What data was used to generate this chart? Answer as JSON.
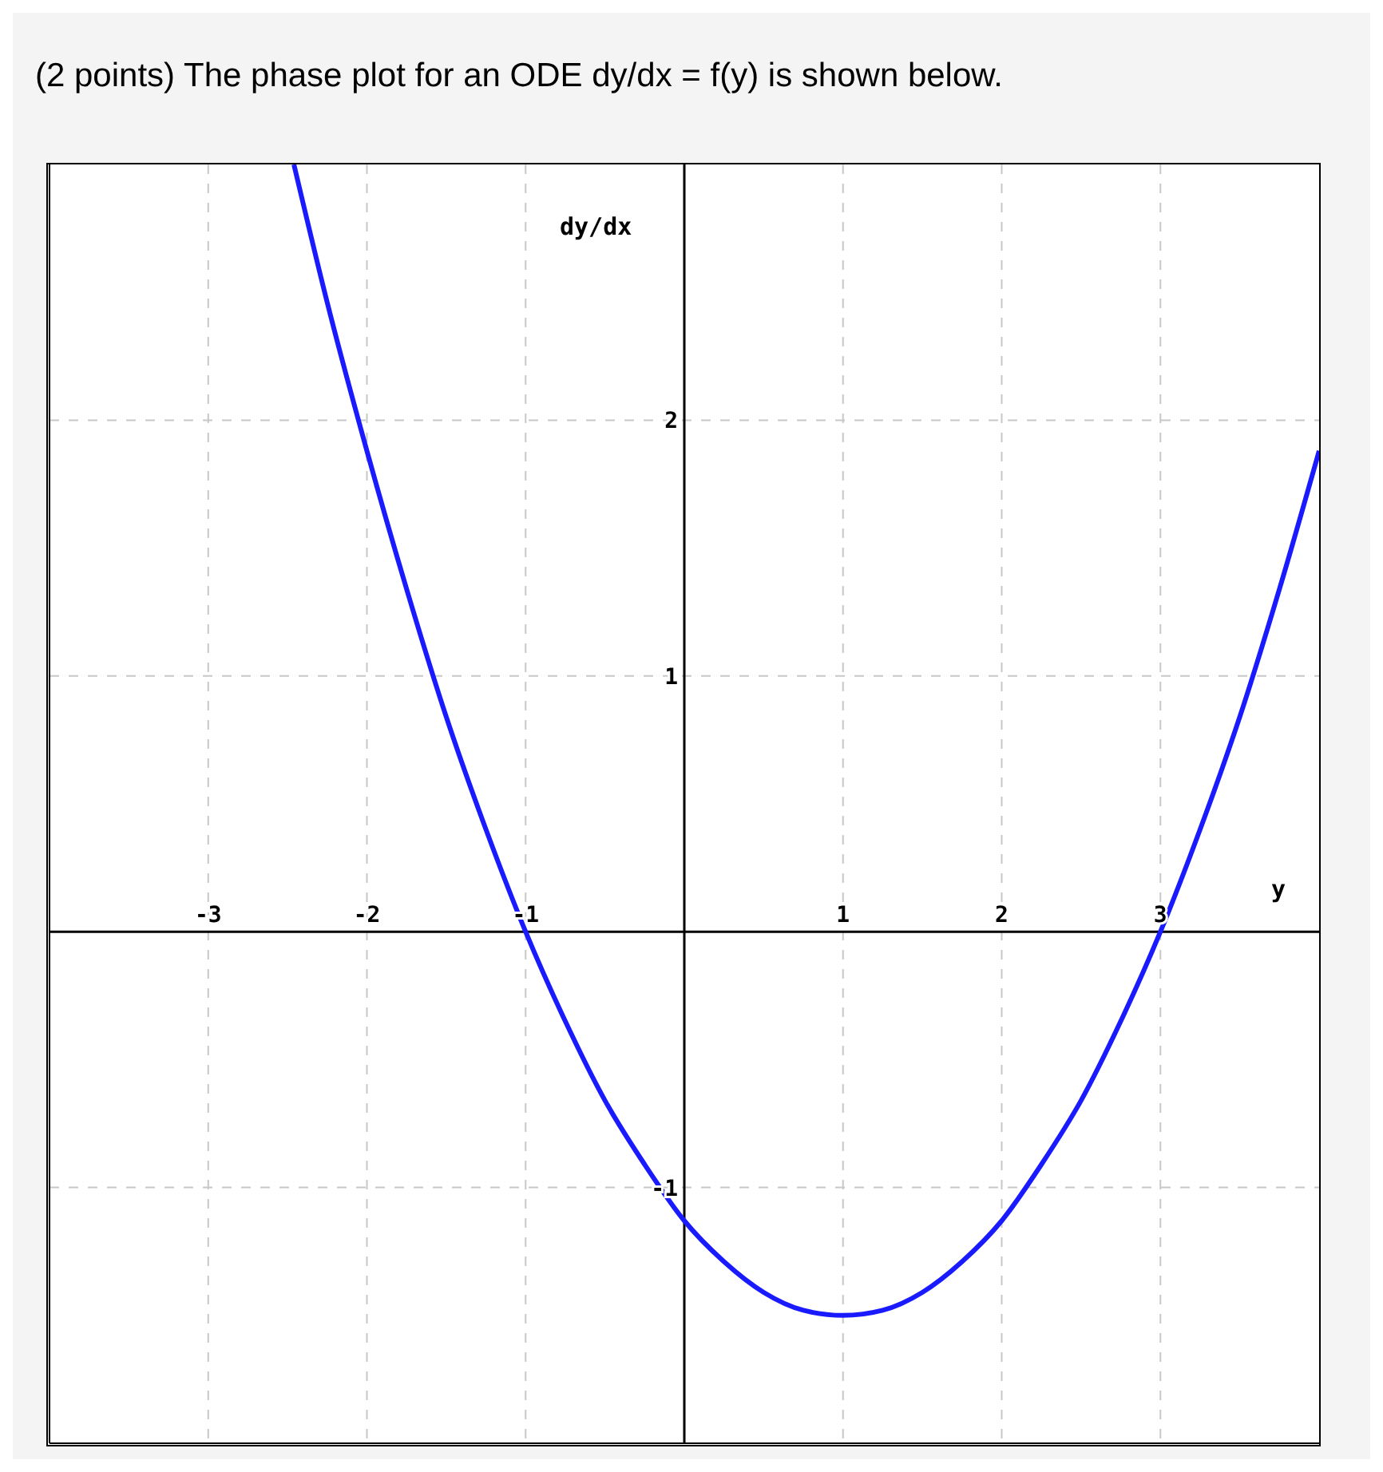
{
  "chart_data": {
    "type": "line",
    "title": "(2 points) The phase plot for an ODE dy/dx = f(y) is shown below.",
    "xlabel": "y",
    "ylabel": "dy/dx",
    "x": [
      -2.46,
      -2.25,
      -2,
      -1.75,
      -1.5,
      -1.25,
      -1,
      -0.75,
      -0.5,
      -0.25,
      0,
      0.25,
      0.5,
      0.75,
      1,
      1.25,
      1.5,
      1.75,
      2,
      2.25,
      2.5,
      2.75,
      3,
      3.25,
      3.5,
      3.75,
      4
    ],
    "series": [
      {
        "color": "#1a1aff",
        "values": [
          3.0,
          2.46,
          1.88,
          1.34,
          0.84,
          0.4,
          0,
          -0.35,
          -0.66,
          -0.91,
          -1.13,
          -1.29,
          -1.41,
          -1.48,
          -1.5,
          -1.48,
          -1.41,
          -1.29,
          -1.13,
          -0.91,
          -0.66,
          -0.35,
          0,
          0.4,
          0.84,
          1.34,
          1.88
        ]
      }
    ],
    "xlim": [
      -4,
      4
    ],
    "ylim": [
      -2,
      3
    ],
    "xticks": [
      -3,
      -2,
      -1,
      1,
      2,
      3
    ],
    "yticks": [
      -1,
      1,
      2
    ],
    "grid": true,
    "marker": "none",
    "line_style": "solid"
  }
}
